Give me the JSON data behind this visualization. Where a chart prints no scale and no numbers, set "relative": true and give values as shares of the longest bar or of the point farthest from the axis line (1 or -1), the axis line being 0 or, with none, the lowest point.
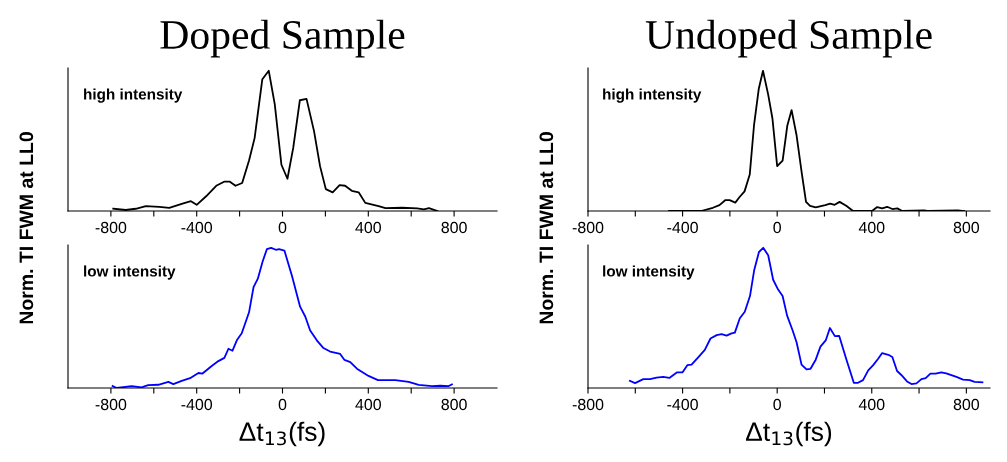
{
  "chart_data": [
    {
      "type": "line",
      "title": "Doped Sample",
      "ylabel": "Norm. TI FWM at LL0",
      "annotations": [
        "high intensity"
      ],
      "relative": true,
      "xlim": [
        -1000,
        1000
      ],
      "xticks": [
        -800,
        {
          "value": -600,
          "label": null
        },
        -400,
        {
          "value": -200,
          "label": null
        },
        0,
        {
          "value": 200,
          "label": null
        },
        400,
        {
          "value": 600,
          "label": null
        },
        800
      ],
      "grid": false,
      "legend": false,
      "series": [
        {
          "color": "#000000",
          "x": [
            -789,
            -731,
            -684,
            -637,
            -575,
            -528,
            -466,
            -427,
            -400,
            -356,
            -309,
            -270,
            -247,
            -219,
            -188,
            -156,
            -130,
            -94,
            -64,
            -36,
            -5,
            23,
            50,
            81,
            112,
            147,
            175,
            202,
            234,
            266,
            292,
            323,
            355,
            386,
            448,
            480,
            558,
            628,
            659,
            683,
            722
          ],
          "values": [
            0.016,
            0.007,
            0.016,
            0.035,
            0.03,
            0.023,
            0.053,
            0.07,
            0.044,
            0.105,
            0.18,
            0.21,
            0.21,
            0.18,
            0.2,
            0.36,
            0.52,
            0.94,
            1.0,
            0.76,
            0.33,
            0.23,
            0.45,
            0.79,
            0.8,
            0.57,
            0.32,
            0.156,
            0.133,
            0.184,
            0.18,
            0.144,
            0.133,
            0.058,
            0.035,
            0.021,
            0.023,
            0.019,
            0.012,
            0.021,
            0
          ]
        }
      ]
    },
    {
      "type": "line",
      "xlabel": "Δt$_{13}$(fs)",
      "annotations": [
        "low intensity"
      ],
      "relative": true,
      "xlim": [
        -1000,
        1000
      ],
      "xticks": [
        -800,
        {
          "value": -600,
          "label": null
        },
        -400,
        {
          "value": -200,
          "label": null
        },
        0,
        {
          "value": 200,
          "label": null
        },
        400,
        {
          "value": 600,
          "label": null
        },
        800
      ],
      "grid": false,
      "legend": false,
      "series": [
        {
          "color": "#0000ff",
          "x": [
            -792,
            -773,
            -703,
            -657,
            -626,
            -579,
            -532,
            -509,
            -470,
            -431,
            -392,
            -373,
            -330,
            -299,
            -271,
            -252,
            -233,
            -213,
            -190,
            -156,
            -135,
            -115,
            -93,
            -73,
            -53,
            -31,
            -16,
            9,
            44,
            82,
            106,
            129,
            160,
            191,
            222,
            269,
            289,
            316,
            347,
            401,
            445,
            526,
            588,
            635,
            697,
            736,
            775,
            790
          ],
          "values": [
            0.014,
            0,
            0.014,
            0.005,
            0.021,
            0.023,
            0.044,
            0.028,
            0.051,
            0.07,
            0.107,
            0.103,
            0.157,
            0.192,
            0.215,
            0.28,
            0.266,
            0.34,
            0.39,
            0.54,
            0.72,
            0.78,
            0.9,
            0.99,
            1.0,
            0.986,
            0.99,
            0.98,
            0.8,
            0.58,
            0.51,
            0.41,
            0.34,
            0.285,
            0.26,
            0.243,
            0.2,
            0.185,
            0.138,
            0.086,
            0.056,
            0.056,
            0.044,
            0.023,
            0.014,
            0.016,
            0.014,
            0.026
          ]
        }
      ]
    },
    {
      "type": "line",
      "title": "Undoped Sample",
      "ylabel": "Norm. TI FWM at LL0",
      "annotations": [
        "high intensity"
      ],
      "relative": true,
      "xlim": [
        -800,
        900
      ],
      "xticks": [
        -800,
        {
          "value": -600,
          "label": null
        },
        -400,
        {
          "value": -200,
          "label": null
        },
        0,
        {
          "value": 200,
          "label": null
        },
        400,
        {
          "value": 600,
          "label": null
        },
        800
      ],
      "grid": false,
      "legend": false,
      "series": [
        {
          "color": "#000000",
          "x": [
            -457,
            -322,
            -272,
            -244,
            -220,
            -201,
            -177,
            -159,
            -138,
            -116,
            -98,
            -78,
            -60,
            -38,
            -20,
            0,
            23,
            43,
            61,
            82,
            104,
            122,
            139,
            163,
            203,
            224,
            243,
            264,
            292,
            321,
            401,
            423,
            444,
            465,
            487,
            508,
            529,
            621,
            635,
            763,
            791
          ],
          "values": [
            0,
            0,
            0.023,
            0.042,
            0.077,
            0.077,
            0.06,
            0.1,
            0.14,
            0.26,
            0.61,
            0.87,
            1.0,
            0.83,
            0.66,
            0.32,
            0.36,
            0.61,
            0.72,
            0.54,
            0.27,
            0.065,
            0.037,
            0.026,
            0.042,
            0.053,
            0.044,
            0.065,
            0.037,
            0,
            0,
            0.028,
            0.019,
            0.03,
            0.014,
            0.019,
            0,
            0.005,
            0,
            0.005,
            0
          ]
        }
      ]
    },
    {
      "type": "line",
      "xlabel": "Δt$_{13}$(fs)",
      "annotations": [
        "low intensity"
      ],
      "relative": true,
      "xlim": [
        -800,
        900
      ],
      "xticks": [
        -800,
        {
          "value": -600,
          "label": null
        },
        -400,
        {
          "value": -200,
          "label": null
        },
        0,
        {
          "value": 200,
          "label": null
        },
        400,
        {
          "value": 600,
          "label": null
        },
        800
      ],
      "grid": false,
      "legend": false,
      "series": [
        {
          "color": "#0000ff",
          "x": [
            -623,
            -601,
            -566,
            -538,
            -510,
            -482,
            -456,
            -423,
            -400,
            -380,
            -362,
            -334,
            -306,
            -282,
            -256,
            -235,
            -214,
            -193,
            -179,
            -158,
            -137,
            -115,
            -97,
            -77,
            -59,
            -38,
            -17,
            4,
            23,
            42,
            65,
            82,
            103,
            124,
            141,
            163,
            183,
            206,
            223,
            244,
            262,
            293,
            324,
            342,
            363,
            385,
            406,
            427,
            444,
            470,
            487,
            507,
            525,
            549,
            568,
            589,
            610,
            628,
            648,
            670,
            694,
            715,
            758,
            786,
            814,
            835,
            868
          ],
          "values": [
            0.051,
            0.035,
            0.063,
            0.063,
            0.074,
            0.079,
            0.072,
            0.112,
            0.112,
            0.163,
            0.167,
            0.219,
            0.272,
            0.353,
            0.377,
            0.384,
            0.374,
            0.39,
            0.395,
            0.498,
            0.544,
            0.656,
            0.842,
            0.97,
            1.0,
            0.947,
            0.772,
            0.702,
            0.656,
            0.516,
            0.412,
            0.326,
            0.167,
            0.133,
            0.137,
            0.202,
            0.295,
            0.342,
            0.428,
            0.37,
            0.372,
            0.202,
            0.037,
            0.037,
            0.056,
            0.126,
            0.163,
            0.209,
            0.249,
            0.237,
            0.221,
            0.121,
            0.093,
            0.047,
            0.028,
            0.033,
            0.063,
            0.07,
            0.102,
            0.102,
            0.112,
            0.105,
            0.079,
            0.06,
            0.056,
            0.044,
            0.04
          ]
        }
      ]
    }
  ]
}
